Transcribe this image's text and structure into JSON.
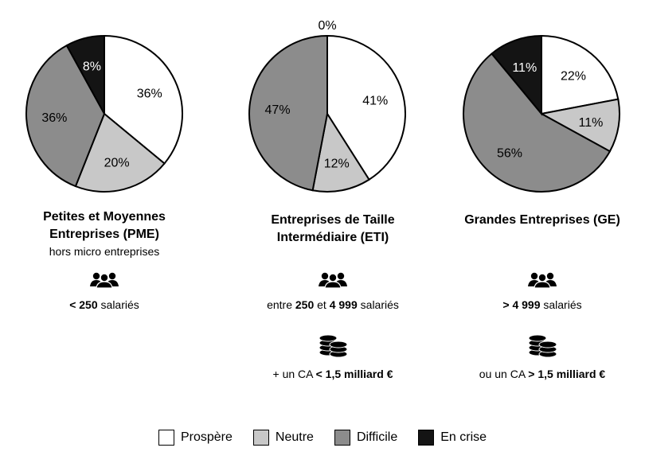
{
  "chart_data": [
    {
      "type": "pie",
      "categories": [
        "Prospère",
        "Neutre",
        "Difficile",
        "En crise"
      ],
      "values": [
        36,
        20,
        36,
        8
      ],
      "labels": [
        "36%",
        "20%",
        "36%",
        "8%"
      ],
      "title": "Petites et Moyennes Entreprises (PME)",
      "subtitle": "hors micro entreprises"
    },
    {
      "type": "pie",
      "categories": [
        "Prospère",
        "Neutre",
        "Difficile",
        "En crise"
      ],
      "values": [
        41,
        12,
        47,
        0
      ],
      "labels": [
        "41%",
        "12%",
        "47%",
        "0%"
      ],
      "title": "Entreprises de Taille Intermédiaire (ETI)"
    },
    {
      "type": "pie",
      "categories": [
        "Prospère",
        "Neutre",
        "Difficile",
        "En crise"
      ],
      "values": [
        22,
        11,
        56,
        11
      ],
      "labels": [
        "22%",
        "11%",
        "56%",
        "11%"
      ],
      "title": "Grandes Entreprises (GE)"
    }
  ],
  "colors": {
    "Prospère": "#ffffff",
    "Neutre": "#c8c8c8",
    "Difficile": "#8c8c8c",
    "En crise": "#141414"
  },
  "columns": [
    {
      "title_line1": "Petites et Moyennes",
      "title_line2": "Entreprises (PME)",
      "subtitle": "hors micro entreprises",
      "employees_icon": "people-group-icon",
      "employees_prefix": "",
      "employees_bold": "< 250",
      "employees_mid": "",
      "employees_bold2": "",
      "employees_suffix": " salariés"
    },
    {
      "title_line1": "Entreprises de Taille",
      "title_line2": "Intermédiaire (ETI)",
      "employees_icon": "people-group-icon",
      "employees_prefix": "entre ",
      "employees_bold": "250",
      "employees_mid": " et ",
      "employees_bold2": "4 999",
      "employees_suffix": " salariés",
      "revenue_icon": "coins-icon",
      "revenue_prefix": "+ un CA ",
      "revenue_bold": "< 1,5 milliard €"
    },
    {
      "title_line1": "Grandes Entreprises (GE)",
      "employees_icon": "people-group-icon",
      "employees_prefix": "",
      "employees_bold": "> 4 999",
      "employees_mid": "",
      "employees_bold2": "",
      "employees_suffix": " salariés",
      "revenue_icon": "coins-icon",
      "revenue_prefix": "ou un CA ",
      "revenue_bold": "> 1,5 milliard €"
    }
  ],
  "legend": [
    {
      "label": "Prospère"
    },
    {
      "label": "Neutre"
    },
    {
      "label": "Difficile"
    },
    {
      "label": "En crise"
    }
  ]
}
